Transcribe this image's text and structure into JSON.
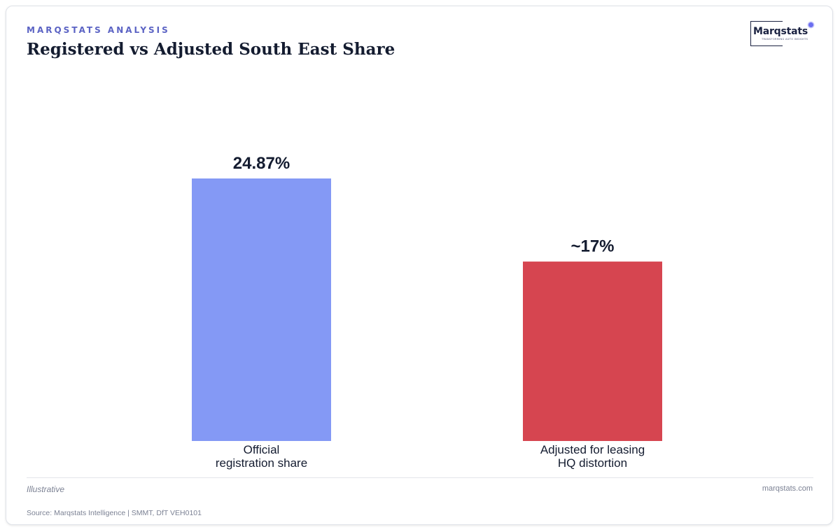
{
  "header": {
    "kicker": "MARQSTATS ANALYSIS",
    "title": "Registered vs Adjusted South East Share"
  },
  "logo": {
    "wordmark": "Marqstats",
    "tagline": "TRANSFORMING AUTO INSIGHTS"
  },
  "colors": {
    "kicker": "#5b63c4",
    "title": "#141c30",
    "bar_official": "#8499f5",
    "bar_adjusted": "#d64550"
  },
  "chart_data": {
    "type": "bar",
    "categories": [
      [
        "Official",
        "registration share"
      ],
      [
        "Adjusted for leasing",
        "HQ distortion"
      ]
    ],
    "values": [
      24.87,
      17
    ],
    "value_labels": [
      "24.87%",
      "~17%"
    ],
    "colors": [
      "#8499f5",
      "#d64550"
    ],
    "ylim": [
      0,
      30
    ],
    "title": "Registered vs Adjusted South East Share",
    "xlabel": "",
    "ylabel": "",
    "grid": false,
    "legend": "none"
  },
  "footer": {
    "note": "Illustrative",
    "site": "marqstats.com",
    "source": "Source: Marqstats Intelligence | SMMT, DfT VEH0101"
  }
}
